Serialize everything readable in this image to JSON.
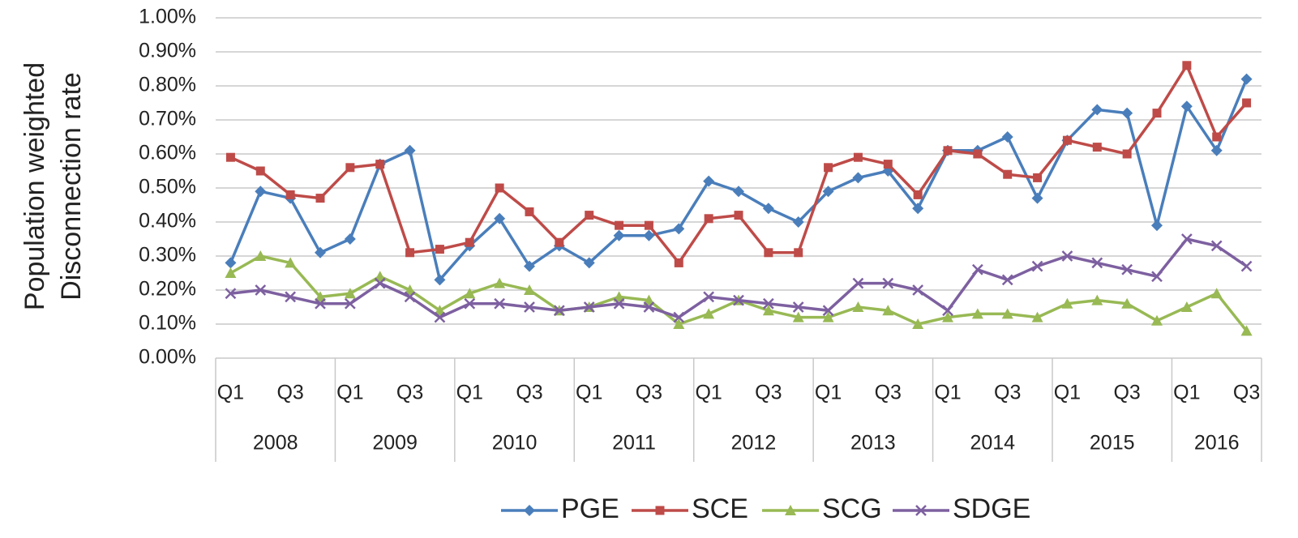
{
  "chart_data": {
    "type": "line",
    "y_label": [
      "Population weighted",
      "Disconnection rate"
    ],
    "categories": [
      "Q1",
      null,
      "Q3",
      null,
      "Q1",
      null,
      "Q3",
      null,
      "Q1",
      null,
      "Q3",
      null,
      "Q1",
      null,
      "Q3",
      null,
      "Q1",
      null,
      "Q3",
      null,
      "Q1",
      null,
      "Q3",
      null,
      "Q1",
      null,
      "Q3",
      null,
      "Q1",
      null,
      "Q3",
      null,
      "Q1",
      null,
      "Q3"
    ],
    "category_groups": [
      "2008",
      "2009",
      "2010",
      "2011",
      "2012",
      "2013",
      "2014",
      "2015",
      "2016"
    ],
    "ylim": [
      0,
      1
    ],
    "yticks": [
      {
        "value": 0,
        "label": "0.00%"
      },
      {
        "value": 0.1,
        "label": "0.10%"
      },
      {
        "value": 0.2,
        "label": "0.20%"
      },
      {
        "value": 0.3,
        "label": "0.30%"
      },
      {
        "value": 0.4,
        "label": "0.40%"
      },
      {
        "value": 0.5,
        "label": "0.50%"
      },
      {
        "value": 0.6,
        "label": "0.60%"
      },
      {
        "value": 0.7,
        "label": "0.70%"
      },
      {
        "value": 0.8,
        "label": "0.80%"
      },
      {
        "value": 0.9,
        "label": "0.90%"
      },
      {
        "value": 1,
        "label": "1.00%"
      }
    ],
    "grid": true,
    "legend": "bottom",
    "series": [
      {
        "name": "PGE",
        "color": "#4a7ebb",
        "marker": "diamond",
        "values": [
          0.28,
          0.49,
          0.47,
          0.31,
          0.35,
          0.57,
          0.61,
          0.23,
          0.33,
          0.41,
          0.27,
          0.33,
          0.28,
          0.36,
          0.36,
          0.38,
          0.52,
          0.49,
          0.44,
          0.4,
          0.49,
          0.53,
          0.55,
          0.44,
          0.61,
          0.61,
          0.65,
          0.47,
          0.64,
          0.73,
          0.72,
          0.39,
          0.74,
          0.61,
          0.82
        ]
      },
      {
        "name": "SCE",
        "color": "#be4b48",
        "marker": "square",
        "values": [
          0.59,
          0.55,
          0.48,
          0.47,
          0.56,
          0.57,
          0.31,
          0.32,
          0.34,
          0.5,
          0.43,
          0.34,
          0.42,
          0.39,
          0.39,
          0.28,
          0.41,
          0.42,
          0.31,
          0.31,
          0.56,
          0.59,
          0.57,
          0.48,
          0.61,
          0.6,
          0.54,
          0.53,
          0.64,
          0.62,
          0.6,
          0.72,
          0.86,
          0.65,
          0.75
        ]
      },
      {
        "name": "SCG",
        "color": "#98b954",
        "marker": "triangle",
        "values": [
          0.25,
          0.3,
          0.28,
          0.18,
          0.19,
          0.24,
          0.2,
          0.14,
          0.19,
          0.22,
          0.2,
          0.14,
          0.15,
          0.18,
          0.17,
          0.1,
          0.13,
          0.17,
          0.14,
          0.12,
          0.12,
          0.15,
          0.14,
          0.1,
          0.12,
          0.13,
          0.13,
          0.12,
          0.16,
          0.17,
          0.16,
          0.11,
          0.15,
          0.19,
          0.08
        ]
      },
      {
        "name": "SDGE",
        "color": "#7d60a0",
        "marker": "x",
        "values": [
          0.19,
          0.2,
          0.18,
          0.16,
          0.16,
          0.22,
          0.18,
          0.12,
          0.16,
          0.16,
          0.15,
          0.14,
          0.15,
          0.16,
          0.15,
          0.12,
          0.18,
          0.17,
          0.16,
          0.15,
          0.14,
          0.22,
          0.22,
          0.2,
          0.14,
          0.26,
          0.23,
          0.27,
          0.3,
          0.28,
          0.26,
          0.24,
          0.35,
          0.33,
          0.27
        ]
      }
    ]
  }
}
